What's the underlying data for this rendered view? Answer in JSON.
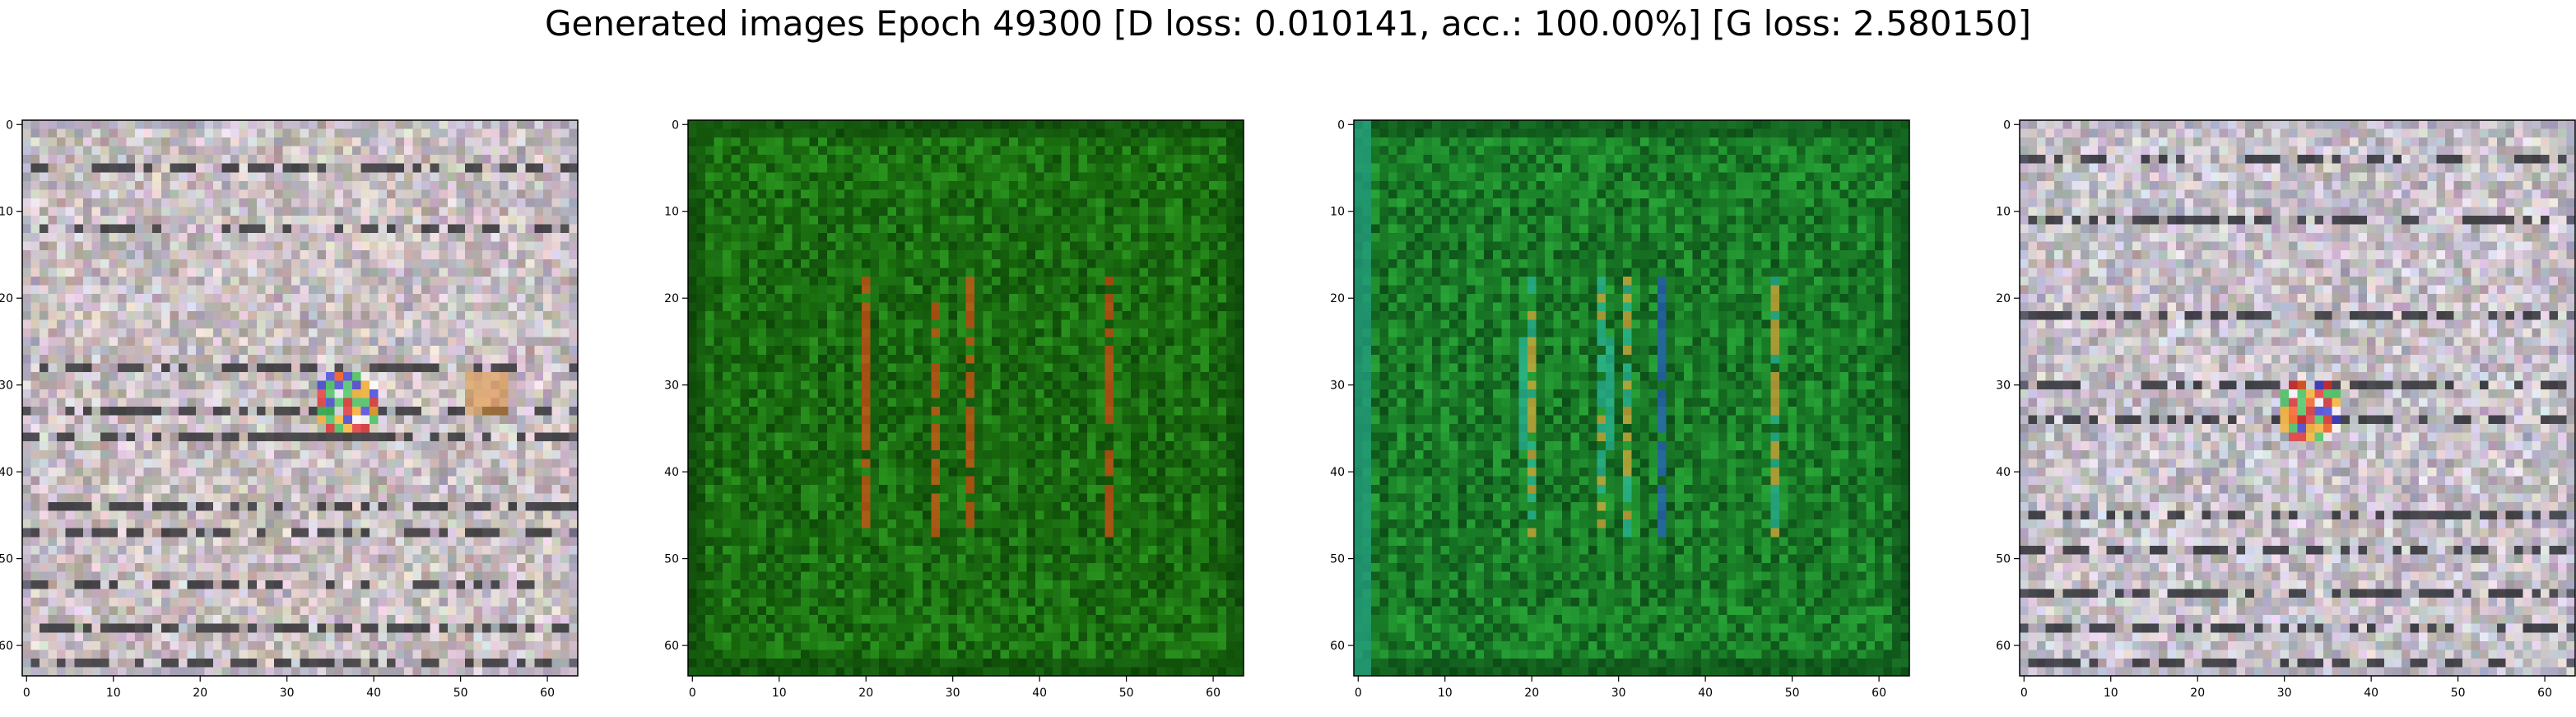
{
  "figure": {
    "title": "Generated images Epoch 49300 [D loss: 0.010141, acc.: 100.00%] [G loss: 2.580150]"
  },
  "chart_data": [
    {
      "type": "heatmap",
      "title": "",
      "xlabel": "",
      "ylabel": "",
      "xlim": [
        -0.5,
        63.5
      ],
      "ylim": [
        63.5,
        -0.5
      ],
      "xticks": [
        0,
        10,
        20,
        30,
        40,
        50,
        60
      ],
      "yticks": [
        0,
        10,
        20,
        30,
        40,
        50,
        60
      ],
      "grid": false,
      "content": "noisy grey/pink generated texture with orange-red blob near (37, 32) and dark horizontal bands",
      "palette": {
        "base": "#c9bfc2",
        "dark": "#2a2a2e",
        "accent": "#ff7a1a"
      }
    },
    {
      "type": "heatmap",
      "title": "",
      "xlabel": "",
      "ylabel": "",
      "xlim": [
        -0.5,
        63.5
      ],
      "ylim": [
        63.5,
        -0.5
      ],
      "xticks": [
        0,
        10,
        20,
        30,
        40,
        50,
        60
      ],
      "yticks": [
        0,
        10,
        20,
        30,
        40,
        50,
        60
      ],
      "grid": false,
      "content": "dark green generated texture with vertical orange-red streaks near x=20, 28, 32 and 48",
      "palette": {
        "base": "#1f7a14",
        "dark": "#0b3d08",
        "accent": "#e04a14"
      }
    },
    {
      "type": "heatmap",
      "title": "",
      "xlabel": "",
      "ylabel": "",
      "xlim": [
        -0.5,
        63.5
      ],
      "ylim": [
        63.5,
        -0.5
      ],
      "xticks": [
        0,
        10,
        20,
        30,
        40,
        50,
        60
      ],
      "yticks": [
        0,
        10,
        20,
        30,
        40,
        50,
        60
      ],
      "grid": false,
      "content": "green-teal generated texture with vertical green and amber streaks and a teal left border",
      "palette": {
        "base": "#1e8a2c",
        "dark": "#0a4014",
        "accent": "#2ab8a0"
      }
    },
    {
      "type": "heatmap",
      "title": "",
      "xlabel": "",
      "ylabel": "",
      "xlim": [
        -0.5,
        63.5
      ],
      "ylim": [
        63.5,
        -0.5
      ],
      "xticks": [
        0,
        10,
        20,
        30,
        40,
        50,
        60
      ],
      "yticks": [
        0,
        10,
        20,
        30,
        40,
        50,
        60
      ],
      "grid": false,
      "content": "noisy grey/pink generated texture with dark horizontal bars and a colorful blob near (33, 33)",
      "palette": {
        "base": "#c6c0c8",
        "dark": "#25262c",
        "accent": "#e8a080"
      }
    }
  ]
}
